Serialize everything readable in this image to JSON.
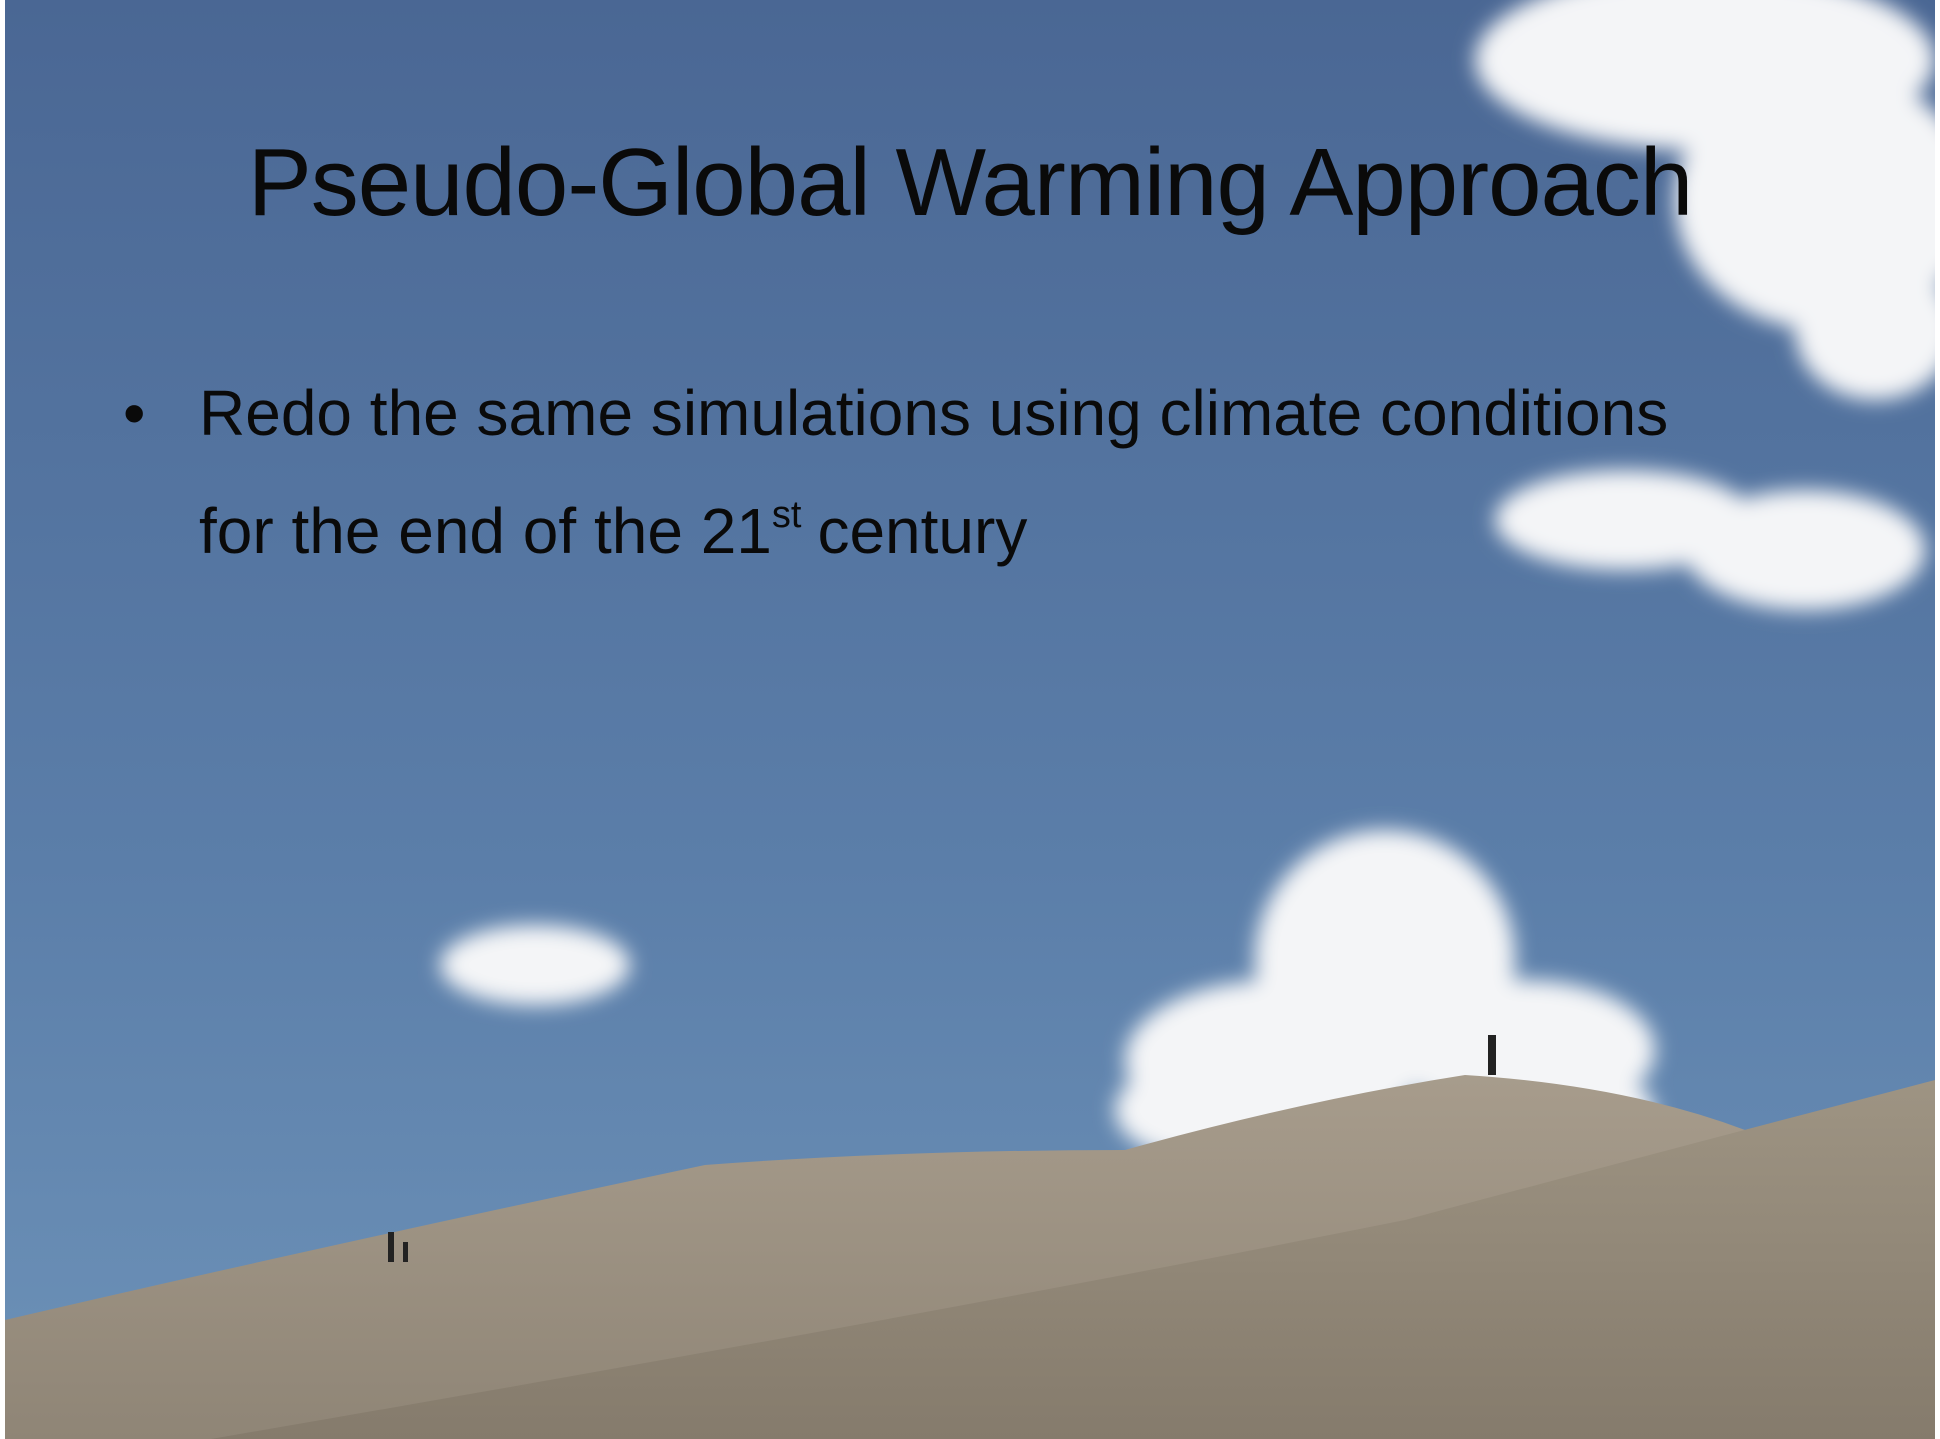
{
  "slide": {
    "title": "Pseudo-Global Warming Approach",
    "bullets": [
      [
        "Redo the same simulations using climate conditions for the end of the 21",
        "st",
        "century"
      ]
    ]
  }
}
